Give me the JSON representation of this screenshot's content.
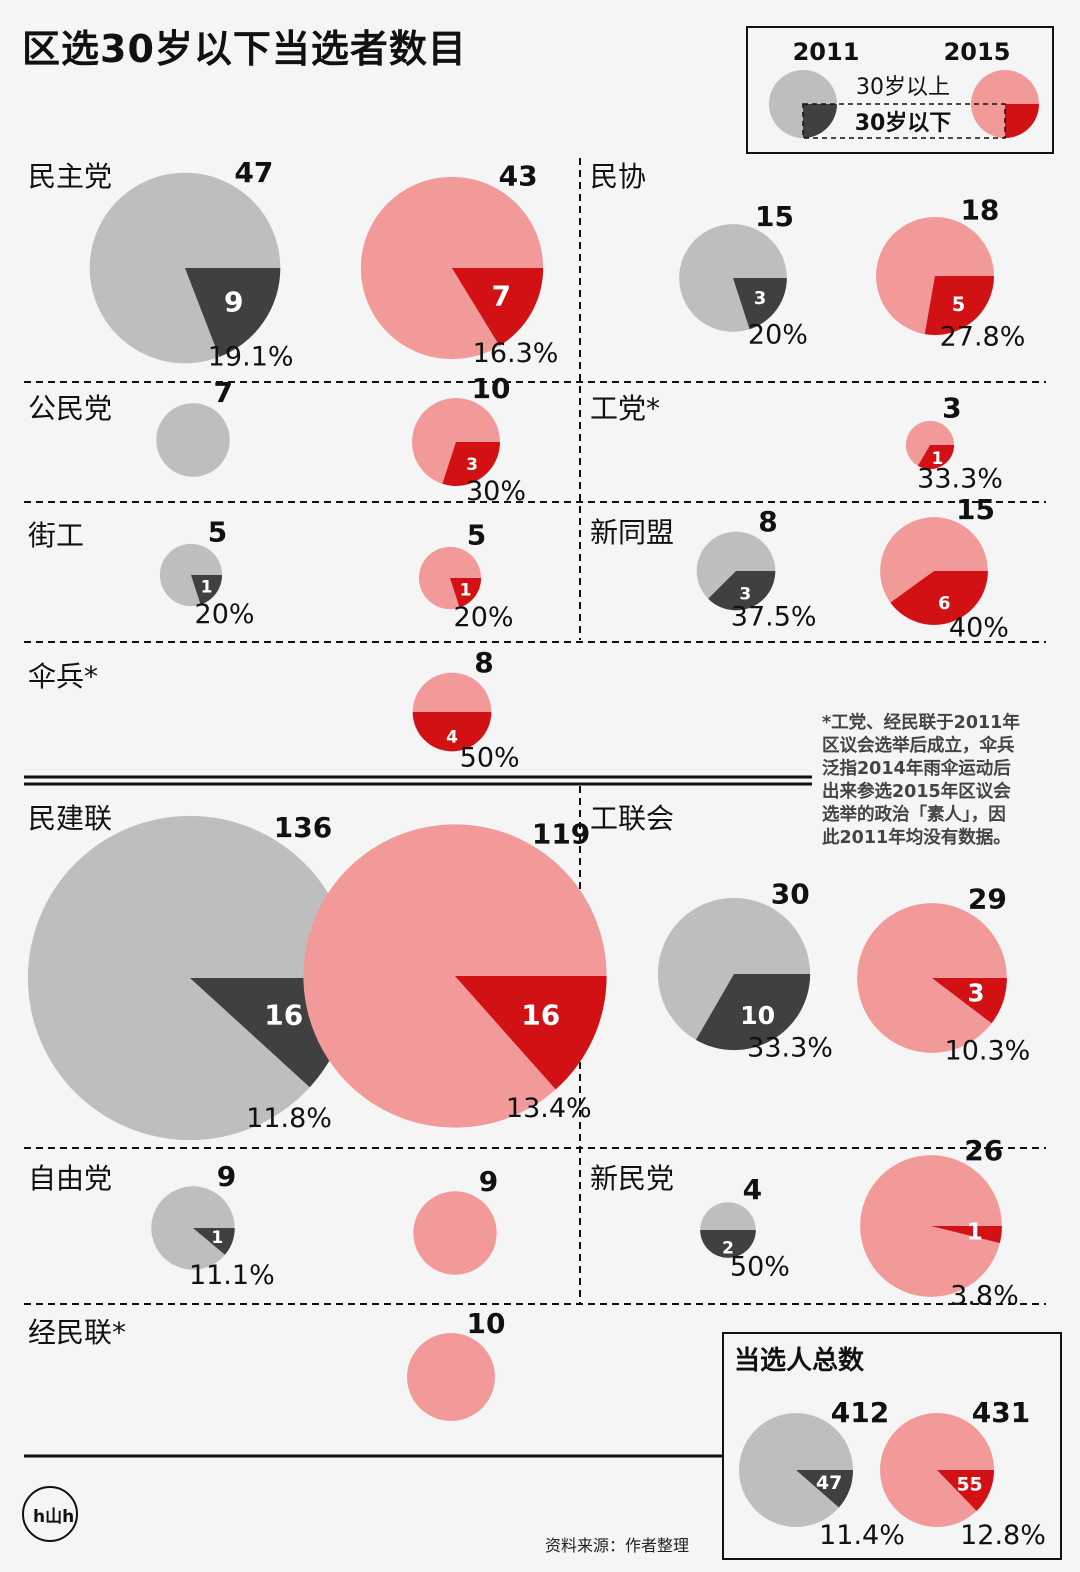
{
  "title": "区选30岁以下当选者数目",
  "legend": {
    "year_a": "2011",
    "year_b": "2015",
    "over_label": "30岁以上",
    "under_label": "30岁以下"
  },
  "colors": {
    "grey": "#bebebe",
    "dark": "#404040",
    "pink": "#f29a9a",
    "red": "#d21114"
  },
  "footnote": [
    "*工党、经民联于2011年",
    "区议会选举后成立，伞兵",
    "泛指2014年雨伞运动后",
    "出来参选2015年区议会",
    "选举的政治「素人」，因",
    "此2011年均没有数据。"
  ],
  "source": "资料来源：作者整理",
  "logo": "h山h",
  "chart_data": {
    "type": "pie",
    "title": "区选30岁以下当选者数目",
    "series_names": [
      "2011",
      "2015"
    ],
    "parties": [
      {
        "name": "民主党",
        "2011": {
          "total": 47,
          "under30": 9,
          "pct": "19.1%"
        },
        "2015": {
          "total": 43,
          "under30": 7,
          "pct": "16.3%"
        }
      },
      {
        "name": "民协",
        "2011": {
          "total": 15,
          "under30": 3,
          "pct": "20%"
        },
        "2015": {
          "total": 18,
          "under30": 5,
          "pct": "27.8%"
        }
      },
      {
        "name": "公民党",
        "2011": {
          "total": 7,
          "under30": 0,
          "pct": ""
        },
        "2015": {
          "total": 10,
          "under30": 3,
          "pct": "30%"
        }
      },
      {
        "name": "工党*",
        "2011": null,
        "2015": {
          "total": 3,
          "under30": 1,
          "pct": "33.3%"
        }
      },
      {
        "name": "街工",
        "2011": {
          "total": 5,
          "under30": 1,
          "pct": "20%"
        },
        "2015": {
          "total": 5,
          "under30": 1,
          "pct": "20%"
        }
      },
      {
        "name": "新同盟",
        "2011": {
          "total": 8,
          "under30": 3,
          "pct": "37.5%"
        },
        "2015": {
          "total": 15,
          "under30": 6,
          "pct": "40%"
        }
      },
      {
        "name": "伞兵*",
        "2011": null,
        "2015": {
          "total": 8,
          "under30": 4,
          "pct": "50%"
        }
      },
      {
        "name": "民建联",
        "2011": {
          "total": 136,
          "under30": 16,
          "pct": "11.8%"
        },
        "2015": {
          "total": 119,
          "under30": 16,
          "pct": "13.4%"
        }
      },
      {
        "name": "工联会",
        "2011": {
          "total": 30,
          "under30": 10,
          "pct": "33.3%"
        },
        "2015": {
          "total": 29,
          "under30": 3,
          "pct": "10.3%"
        }
      },
      {
        "name": "自由党",
        "2011": {
          "total": 9,
          "under30": 1,
          "pct": "11.1%"
        },
        "2015": {
          "total": 9,
          "under30": 0,
          "pct": ""
        }
      },
      {
        "name": "新民党",
        "2011": {
          "total": 4,
          "under30": 2,
          "pct": "50%"
        },
        "2015": {
          "total": 26,
          "under30": 1,
          "pct": "3.8%"
        }
      },
      {
        "name": "经民联*",
        "2011": null,
        "2015": {
          "total": 10,
          "under30": 0,
          "pct": ""
        }
      }
    ],
    "totals": {
      "label": "当选人总数",
      "2011": {
        "total": 412,
        "under30": 47,
        "pct": "11.4%"
      },
      "2015": {
        "total": 431,
        "under30": 55,
        "pct": "12.8%"
      }
    }
  }
}
